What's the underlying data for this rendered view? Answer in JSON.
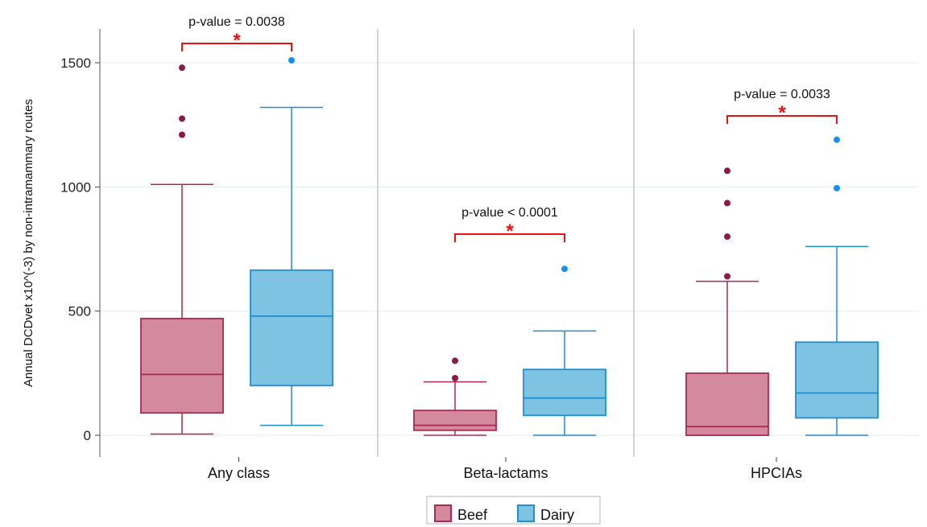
{
  "chart_data": {
    "type": "boxplot",
    "ylabel": "Annual DCDvet  x10^(-3) by non-intramammary routes",
    "ylim": [
      0,
      1500
    ],
    "yticks": [
      "0",
      "500",
      "1000",
      "1500"
    ],
    "y_tick_values": [
      0,
      500,
      1000,
      1500
    ],
    "grid": "horizontal",
    "legend_position": "bottom-center",
    "series_names": [
      "Beef",
      "Dairy"
    ],
    "colors": {
      "beef_fill": "#d48a9e",
      "beef_stroke": "#a82a52",
      "beef_outlier": "#8b1a45",
      "dairy_fill": "#7fc3e3",
      "dairy_stroke": "#1e8fd0",
      "dairy_outlier": "#1a8ff0",
      "significance": "#ee1111"
    },
    "groups": [
      {
        "label": "Any class",
        "pvalue": "p-value = 0.0038",
        "star": "*",
        "boxes": [
          {
            "series": "Beef",
            "whisker_low": 5,
            "q1": 90,
            "median": 245,
            "q3": 470,
            "whisker_high": 1010,
            "outliers": [
              1210,
              1275,
              1480
            ]
          },
          {
            "series": "Dairy",
            "whisker_low": 40,
            "q1": 200,
            "median": 480,
            "q3": 665,
            "whisker_high": 1320,
            "outliers": [
              1510
            ]
          }
        ]
      },
      {
        "label": "Beta-lactams",
        "pvalue": "p-value < 0.0001",
        "star": "*",
        "boxes": [
          {
            "series": "Beef",
            "whisker_low": 0,
            "q1": 20,
            "median": 40,
            "q3": 100,
            "whisker_high": 215,
            "outliers": [
              230,
              300
            ]
          },
          {
            "series": "Dairy",
            "whisker_low": 0,
            "q1": 80,
            "median": 150,
            "q3": 265,
            "whisker_high": 420,
            "outliers": [
              670
            ]
          }
        ]
      },
      {
        "label": "HPCIAs",
        "pvalue": "p-value = 0.0033",
        "star": "*",
        "boxes": [
          {
            "series": "Beef",
            "whisker_low": 0,
            "q1": 0,
            "median": 35,
            "q3": 250,
            "whisker_high": 620,
            "outliers": [
              640,
              800,
              935,
              1065
            ]
          },
          {
            "series": "Dairy",
            "whisker_low": 0,
            "q1": 70,
            "median": 170,
            "q3": 375,
            "whisker_high": 760,
            "outliers": [
              995,
              1190
            ]
          }
        ]
      }
    ]
  }
}
